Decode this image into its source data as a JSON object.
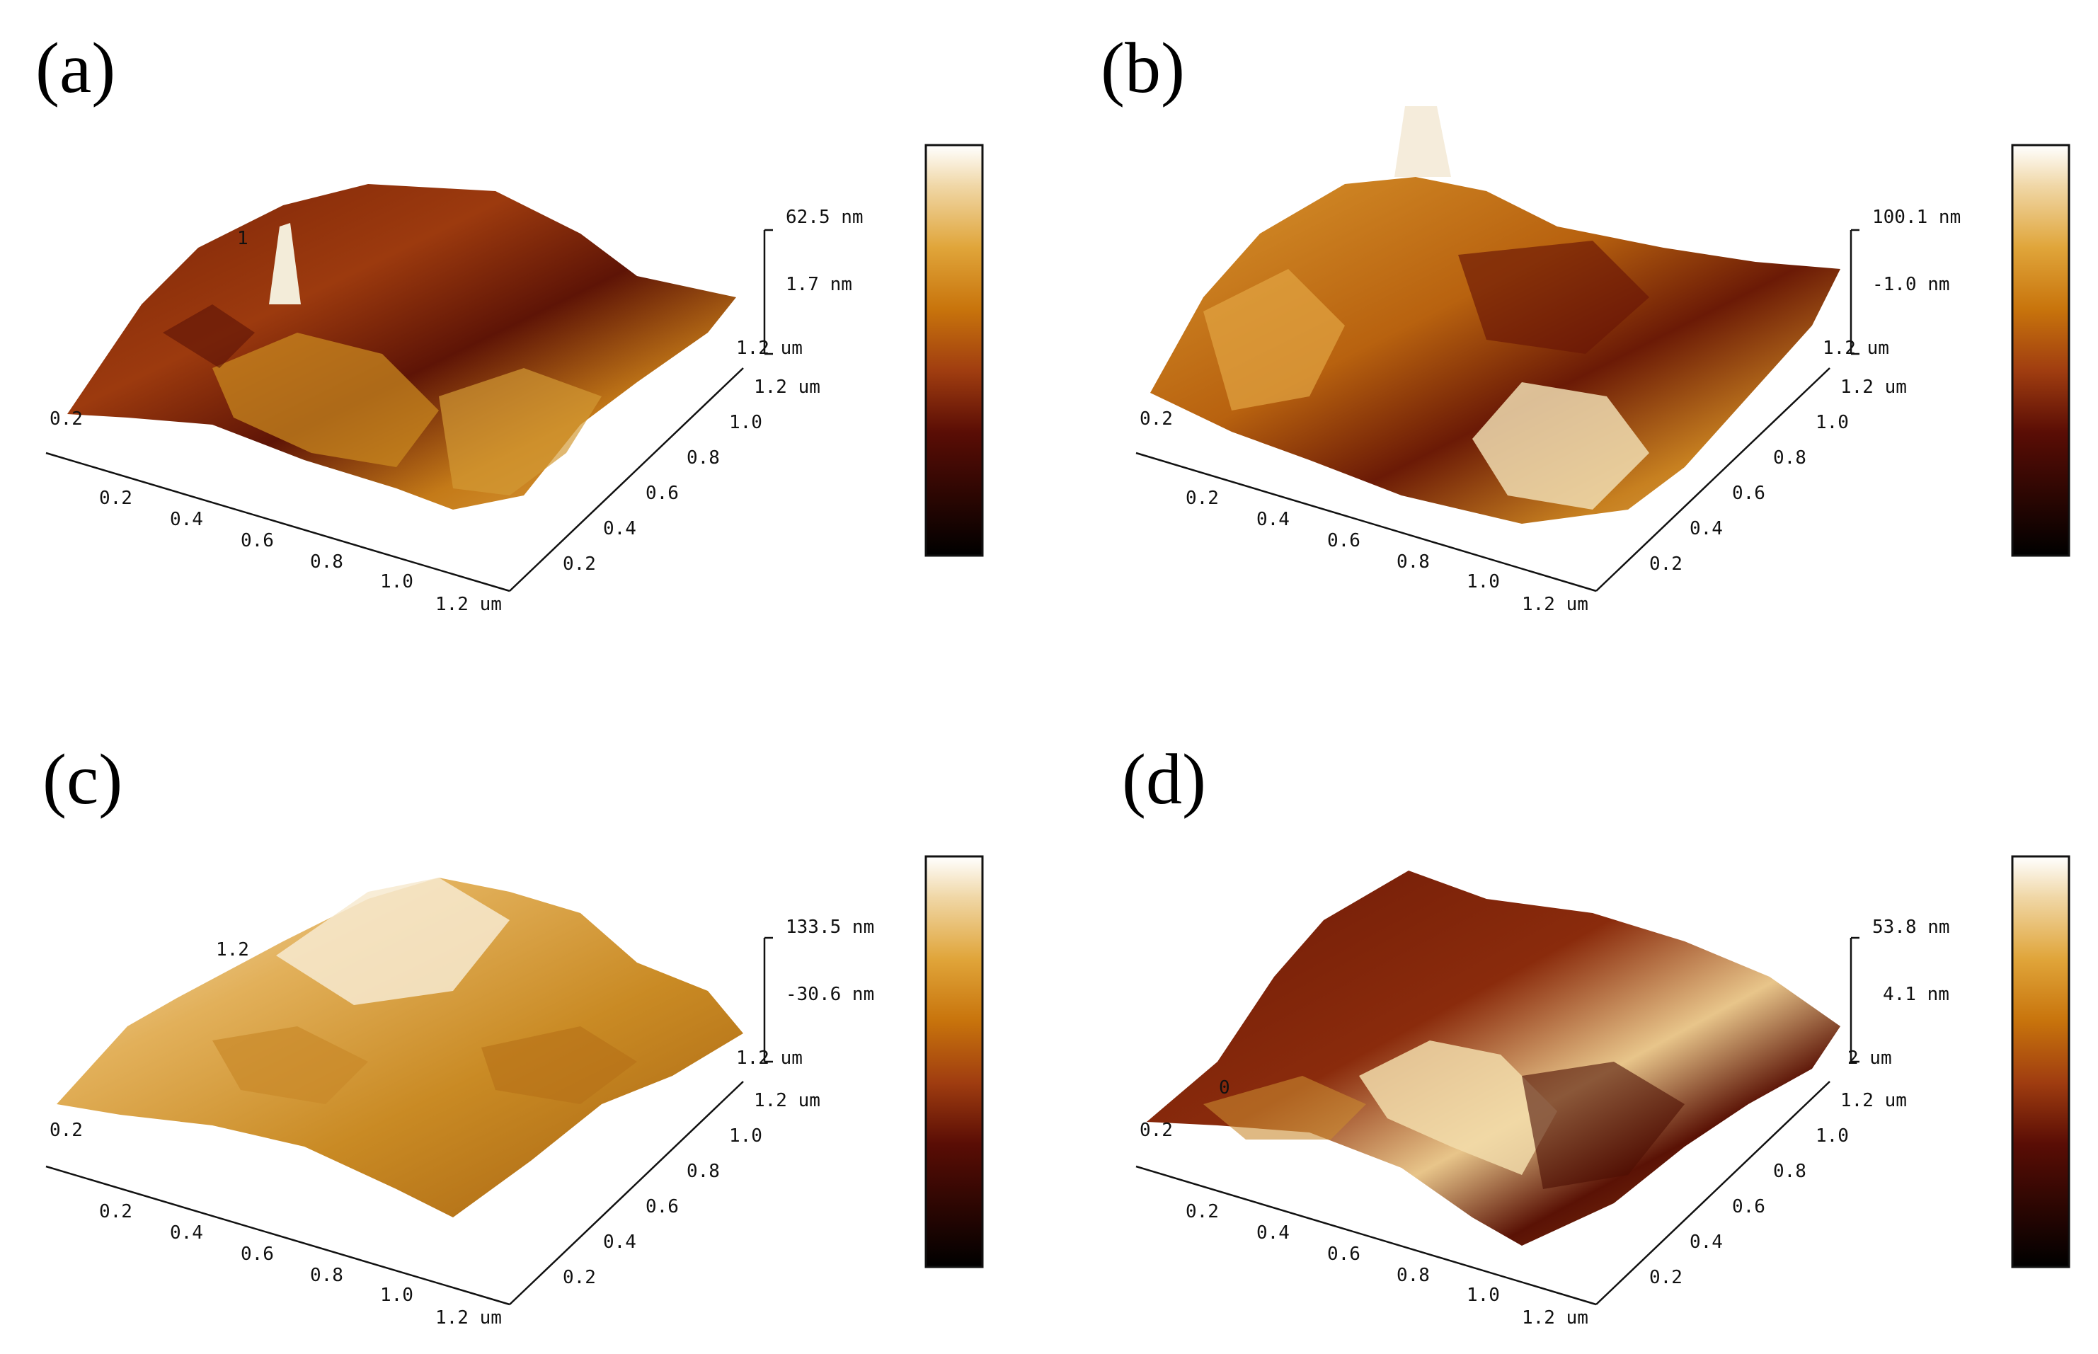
{
  "colors": {
    "colormap": [
      "#000000",
      "#5a0d05",
      "#a03d10",
      "#c8740c",
      "#e0a53a",
      "#f0d7a6",
      "#ffffff"
    ],
    "axis": "#111111",
    "background": "#ffffff"
  },
  "panels": [
    {
      "label": "(a)",
      "z_max": "62.5 nm",
      "z_mid": "1.7 nm",
      "z_axis_end": "1.2 um",
      "x_ticks": [
        "0.2",
        "0.4",
        "0.6",
        "0.8",
        "1.0",
        "1.2 um"
      ],
      "y_ticks": [
        "0.2",
        "0.4",
        "0.6",
        "0.8",
        "1.0",
        "1.2 um"
      ],
      "corner_label": "0.2",
      "peak_label": "1"
    },
    {
      "label": "(b)",
      "z_max": "100.1 nm",
      "z_mid": "-1.0 nm",
      "z_axis_end": "1.2 um",
      "x_ticks": [
        "0.2",
        "0.4",
        "0.6",
        "0.8",
        "1.0",
        "1.2 um"
      ],
      "y_ticks": [
        "0.2",
        "0.4",
        "0.6",
        "0.8",
        "1.0",
        "1.2 um"
      ],
      "corner_label": "0.2",
      "peak_label": ""
    },
    {
      "label": "(c)",
      "z_max": "133.5 nm",
      "z_mid": "-30.6 nm",
      "z_axis_end": "1.2 um",
      "x_ticks": [
        "0.2",
        "0.4",
        "0.6",
        "0.8",
        "1.0",
        "1.2 um"
      ],
      "y_ticks": [
        "0.2",
        "0.4",
        "0.6",
        "0.8",
        "1.0",
        "1.2 um"
      ],
      "corner_label": "0.2",
      "peak_label": "1.2"
    },
    {
      "label": "(d)",
      "z_max": "53.8 nm",
      "z_mid": "4.1 nm",
      "z_axis_end": "2 um",
      "x_ticks": [
        "0.2",
        "0.4",
        "0.6",
        "0.8",
        "1.0",
        "1.2 um"
      ],
      "y_ticks": [
        "0.2",
        "0.4",
        "0.6",
        "0.8",
        "1.0",
        "1.2 um"
      ],
      "corner_label": "0.2",
      "peak_label": "0"
    }
  ]
}
